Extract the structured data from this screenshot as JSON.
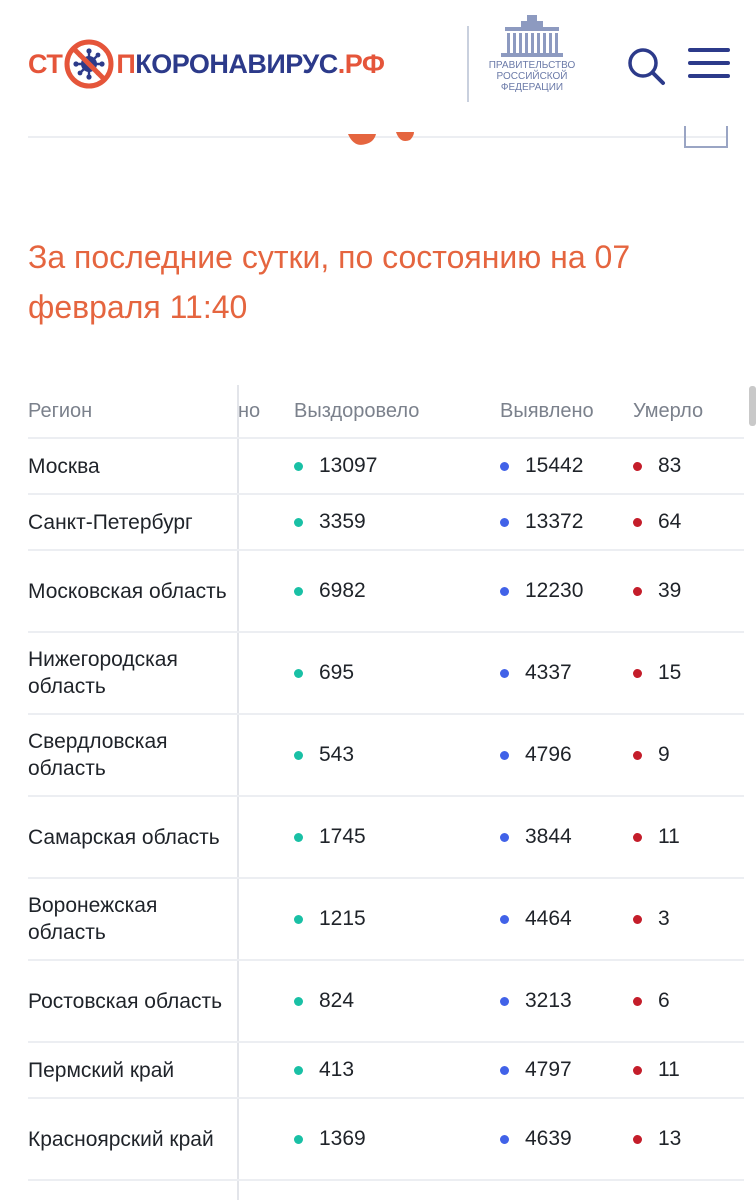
{
  "header": {
    "logo": {
      "part1": "СТ",
      "part2": "П",
      "part3": "КОРОНАВИРУС",
      "part4": ".РФ"
    },
    "gov_lines": [
      "ПРАВИТЕЛЬСТВО",
      "РОССИЙСКОЙ",
      "ФЕДЕРАЦИИ"
    ],
    "icons": {
      "search": "search-icon",
      "menu": "hamburger-menu-icon",
      "virus": "virus-icon",
      "gov": "government-building-icon"
    }
  },
  "heading": "За последние сутки, по состоянию на 07 февраля 11:40",
  "table": {
    "headers": {
      "region": "Регион",
      "hidden": "но",
      "recovered": "Выздоровело",
      "found": "Выявлено",
      "died": "Умерло"
    },
    "rows": [
      {
        "region": "Москва",
        "recovered": "13097",
        "found": "15442",
        "died": "83"
      },
      {
        "region": "Санкт-Петербург",
        "recovered": "3359",
        "found": "13372",
        "died": "64"
      },
      {
        "region": "Московская область",
        "recovered": "6982",
        "found": "12230",
        "died": "39"
      },
      {
        "region": "Нижегородская область",
        "recovered": "695",
        "found": "4337",
        "died": "15"
      },
      {
        "region": "Свердловская область",
        "recovered": "543",
        "found": "4796",
        "died": "9"
      },
      {
        "region": "Самарская область",
        "recovered": "1745",
        "found": "3844",
        "died": "11"
      },
      {
        "region": "Воронежская область",
        "recovered": "1215",
        "found": "4464",
        "died": "3"
      },
      {
        "region": "Ростовская область",
        "recovered": "824",
        "found": "3213",
        "died": "6"
      },
      {
        "region": "Пермский край",
        "recovered": "413",
        "found": "4797",
        "died": "11"
      },
      {
        "region": "Красноярский край",
        "recovered": "1369",
        "found": "4639",
        "died": "13"
      }
    ]
  },
  "colors": {
    "accent": "#e5653f",
    "brand_blue": "#2c3a8a",
    "recovered": "#19c0a5",
    "found": "#4162e8",
    "died": "#c41d2a"
  }
}
